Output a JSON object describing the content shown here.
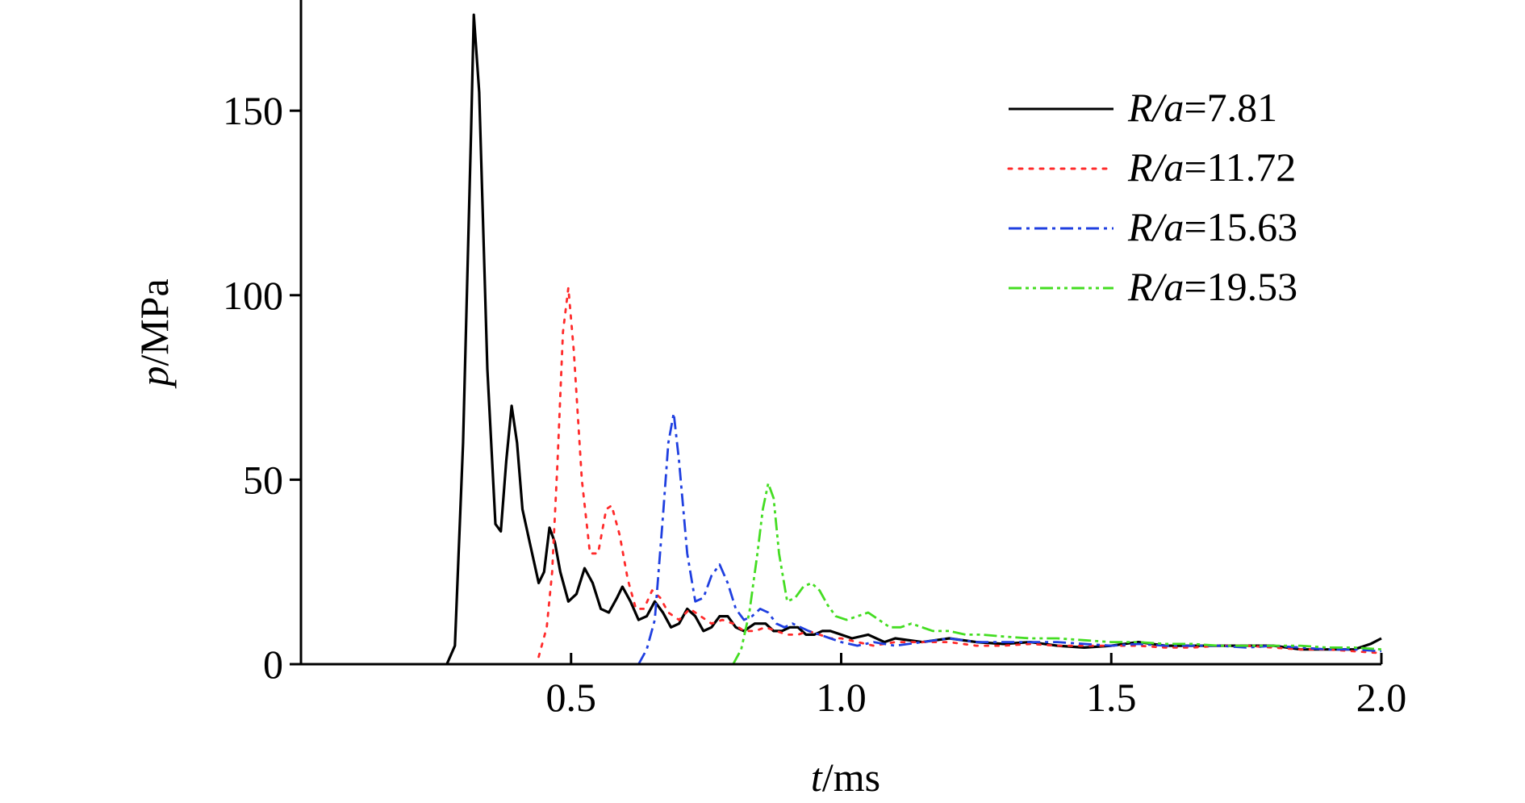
{
  "chart_data": {
    "type": "line",
    "title": "",
    "xlabel": {
      "var": "t",
      "unit": "/ms"
    },
    "ylabel": {
      "var": "p",
      "unit": "/MPa"
    },
    "xlim": [
      0,
      2.0
    ],
    "ylim": [
      0,
      180
    ],
    "xticks": [
      0.5,
      1.0,
      1.5,
      2.0
    ],
    "xtick_labels": [
      "0.5",
      "1.0",
      "1.5",
      "2.0"
    ],
    "yticks": [
      0,
      50,
      100,
      150
    ],
    "ytick_labels": [
      "0",
      "50",
      "100",
      "150"
    ],
    "legend_position": "top-right",
    "series": [
      {
        "name": "R/a=7.81",
        "label_italic": "R/a",
        "label_value": "=7.81",
        "color": "#000000",
        "style": "solid",
        "points": [
          [
            0.27,
            0
          ],
          [
            0.285,
            5
          ],
          [
            0.3,
            60
          ],
          [
            0.315,
            145
          ],
          [
            0.32,
            176
          ],
          [
            0.33,
            155
          ],
          [
            0.345,
            80
          ],
          [
            0.36,
            38
          ],
          [
            0.37,
            36
          ],
          [
            0.38,
            55
          ],
          [
            0.39,
            70
          ],
          [
            0.4,
            60
          ],
          [
            0.41,
            42
          ],
          [
            0.425,
            32
          ],
          [
            0.44,
            22
          ],
          [
            0.45,
            25
          ],
          [
            0.46,
            37
          ],
          [
            0.47,
            33
          ],
          [
            0.48,
            25
          ],
          [
            0.495,
            17
          ],
          [
            0.51,
            19
          ],
          [
            0.525,
            26
          ],
          [
            0.54,
            22
          ],
          [
            0.555,
            15
          ],
          [
            0.57,
            14
          ],
          [
            0.585,
            18
          ],
          [
            0.595,
            21
          ],
          [
            0.61,
            17
          ],
          [
            0.625,
            12
          ],
          [
            0.64,
            13
          ],
          [
            0.655,
            17
          ],
          [
            0.67,
            14
          ],
          [
            0.685,
            10
          ],
          [
            0.7,
            11
          ],
          [
            0.715,
            15
          ],
          [
            0.73,
            13
          ],
          [
            0.745,
            9
          ],
          [
            0.76,
            10
          ],
          [
            0.775,
            13
          ],
          [
            0.79,
            13
          ],
          [
            0.805,
            10
          ],
          [
            0.82,
            9
          ],
          [
            0.84,
            11
          ],
          [
            0.86,
            11
          ],
          [
            0.875,
            9
          ],
          [
            0.89,
            9
          ],
          [
            0.905,
            10
          ],
          [
            0.92,
            10
          ],
          [
            0.935,
            8
          ],
          [
            0.95,
            8
          ],
          [
            0.965,
            9
          ],
          [
            0.98,
            9
          ],
          [
            1.0,
            8
          ],
          [
            1.02,
            7
          ],
          [
            1.05,
            8
          ],
          [
            1.08,
            6
          ],
          [
            1.1,
            7
          ],
          [
            1.15,
            6
          ],
          [
            1.2,
            7
          ],
          [
            1.25,
            6
          ],
          [
            1.3,
            5.5
          ],
          [
            1.35,
            6
          ],
          [
            1.4,
            5
          ],
          [
            1.45,
            4.5
          ],
          [
            1.5,
            5
          ],
          [
            1.55,
            6
          ],
          [
            1.6,
            5
          ],
          [
            1.65,
            5
          ],
          [
            1.7,
            5
          ],
          [
            1.75,
            5
          ],
          [
            1.8,
            5
          ],
          [
            1.85,
            4
          ],
          [
            1.9,
            4
          ],
          [
            1.95,
            4
          ],
          [
            1.98,
            5.5
          ],
          [
            2.0,
            7
          ]
        ]
      },
      {
        "name": "R/a=11.72",
        "label_italic": "R/a",
        "label_value": "=11.72",
        "color": "#ff2a2a",
        "style": "dotted",
        "points": [
          [
            0.44,
            2
          ],
          [
            0.455,
            10
          ],
          [
            0.465,
            25
          ],
          [
            0.475,
            55
          ],
          [
            0.485,
            90
          ],
          [
            0.495,
            102
          ],
          [
            0.505,
            85
          ],
          [
            0.52,
            50
          ],
          [
            0.535,
            30
          ],
          [
            0.55,
            30
          ],
          [
            0.565,
            42
          ],
          [
            0.575,
            43
          ],
          [
            0.59,
            35
          ],
          [
            0.605,
            23
          ],
          [
            0.62,
            15
          ],
          [
            0.635,
            15
          ],
          [
            0.65,
            20
          ],
          [
            0.665,
            18
          ],
          [
            0.68,
            14
          ],
          [
            0.7,
            12
          ],
          [
            0.72,
            15
          ],
          [
            0.74,
            13
          ],
          [
            0.76,
            11
          ],
          [
            0.78,
            12
          ],
          [
            0.8,
            11
          ],
          [
            0.82,
            9
          ],
          [
            0.84,
            9
          ],
          [
            0.86,
            10
          ],
          [
            0.88,
            9
          ],
          [
            0.9,
            8
          ],
          [
            0.92,
            8
          ],
          [
            0.94,
            9
          ],
          [
            0.96,
            8
          ],
          [
            0.98,
            7
          ],
          [
            1.0,
            7
          ],
          [
            1.03,
            6
          ],
          [
            1.06,
            5
          ],
          [
            1.1,
            6
          ],
          [
            1.15,
            6
          ],
          [
            1.2,
            6
          ],
          [
            1.25,
            5
          ],
          [
            1.3,
            5
          ],
          [
            1.35,
            5.5
          ],
          [
            1.4,
            5
          ],
          [
            1.45,
            5
          ],
          [
            1.5,
            5
          ],
          [
            1.55,
            5
          ],
          [
            1.6,
            4.5
          ],
          [
            1.65,
            4.5
          ],
          [
            1.7,
            5
          ],
          [
            1.75,
            5
          ],
          [
            1.8,
            4.5
          ],
          [
            1.85,
            4
          ],
          [
            1.9,
            4
          ],
          [
            1.95,
            3.5
          ],
          [
            2.0,
            3
          ]
        ]
      },
      {
        "name": "R/a=15.63",
        "label_italic": "R/a",
        "label_value": "=15.63",
        "color": "#1f3fe0",
        "style": "dashdot",
        "points": [
          [
            0.625,
            0
          ],
          [
            0.64,
            4
          ],
          [
            0.655,
            12
          ],
          [
            0.67,
            40
          ],
          [
            0.68,
            60
          ],
          [
            0.69,
            68
          ],
          [
            0.7,
            55
          ],
          [
            0.715,
            30
          ],
          [
            0.73,
            17
          ],
          [
            0.745,
            18
          ],
          [
            0.76,
            24
          ],
          [
            0.775,
            27
          ],
          [
            0.79,
            22
          ],
          [
            0.805,
            15
          ],
          [
            0.82,
            12
          ],
          [
            0.835,
            13
          ],
          [
            0.85,
            15
          ],
          [
            0.865,
            14
          ],
          [
            0.88,
            11
          ],
          [
            0.895,
            10
          ],
          [
            0.91,
            11
          ],
          [
            0.925,
            10
          ],
          [
            0.94,
            9
          ],
          [
            0.96,
            8
          ],
          [
            0.98,
            7
          ],
          [
            1.0,
            6
          ],
          [
            1.03,
            5
          ],
          [
            1.06,
            6
          ],
          [
            1.1,
            5
          ],
          [
            1.15,
            6
          ],
          [
            1.2,
            7
          ],
          [
            1.25,
            6
          ],
          [
            1.3,
            6
          ],
          [
            1.35,
            6
          ],
          [
            1.4,
            6
          ],
          [
            1.45,
            5.5
          ],
          [
            1.5,
            5
          ],
          [
            1.55,
            5.5
          ],
          [
            1.6,
            5
          ],
          [
            1.65,
            5
          ],
          [
            1.7,
            5
          ],
          [
            1.75,
            4.5
          ],
          [
            1.8,
            5
          ],
          [
            1.85,
            4.5
          ],
          [
            1.9,
            4
          ],
          [
            1.95,
            4
          ],
          [
            2.0,
            3.5
          ]
        ]
      },
      {
        "name": "R/a=19.53",
        "label_italic": "R/a",
        "label_value": "=19.53",
        "color": "#44dd22",
        "style": "dashdotdot",
        "points": [
          [
            0.8,
            0
          ],
          [
            0.815,
            4
          ],
          [
            0.83,
            14
          ],
          [
            0.845,
            30
          ],
          [
            0.855,
            42
          ],
          [
            0.865,
            49
          ],
          [
            0.875,
            45
          ],
          [
            0.885,
            30
          ],
          [
            0.9,
            17
          ],
          [
            0.915,
            18
          ],
          [
            0.93,
            21
          ],
          [
            0.945,
            22
          ],
          [
            0.96,
            20
          ],
          [
            0.975,
            16
          ],
          [
            0.99,
            13
          ],
          [
            1.01,
            12
          ],
          [
            1.03,
            13
          ],
          [
            1.05,
            14
          ],
          [
            1.07,
            12
          ],
          [
            1.09,
            10
          ],
          [
            1.11,
            10
          ],
          [
            1.13,
            11
          ],
          [
            1.15,
            10
          ],
          [
            1.17,
            9
          ],
          [
            1.2,
            9
          ],
          [
            1.23,
            8
          ],
          [
            1.26,
            8
          ],
          [
            1.3,
            7.5
          ],
          [
            1.35,
            7
          ],
          [
            1.4,
            7
          ],
          [
            1.45,
            6.5
          ],
          [
            1.5,
            6
          ],
          [
            1.55,
            6
          ],
          [
            1.6,
            5.5
          ],
          [
            1.65,
            5.5
          ],
          [
            1.7,
            5
          ],
          [
            1.75,
            5
          ],
          [
            1.8,
            5
          ],
          [
            1.85,
            5
          ],
          [
            1.9,
            4.5
          ],
          [
            1.95,
            4.5
          ],
          [
            2.0,
            4
          ]
        ]
      }
    ]
  }
}
